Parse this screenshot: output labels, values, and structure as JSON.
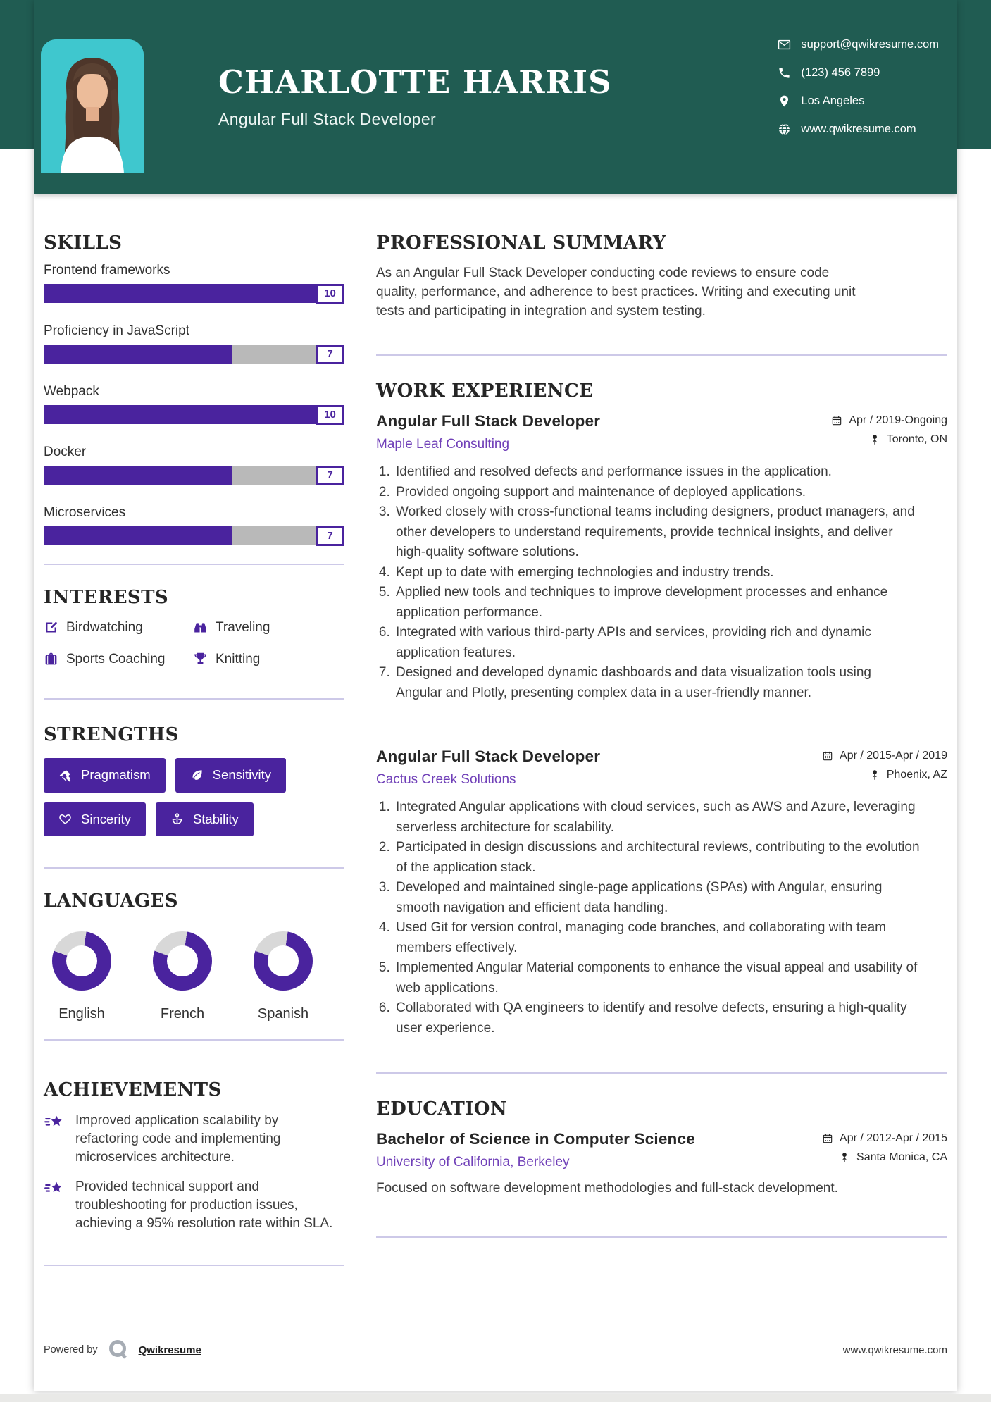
{
  "header": {
    "name": "CHARLOTTE HARRIS",
    "title": "Angular Full Stack Developer",
    "contacts": [
      {
        "icon": "email-icon",
        "text": "support@qwikresume.com"
      },
      {
        "icon": "phone-icon",
        "text": "(123) 456 7899"
      },
      {
        "icon": "location-icon",
        "text": "Los Angeles"
      },
      {
        "icon": "globe-icon",
        "text": "www.qwikresume.com"
      }
    ]
  },
  "skills": {
    "heading": "SKILLS",
    "items": [
      {
        "label": "Frontend frameworks",
        "score": 10,
        "percent": 100
      },
      {
        "label": "Proficiency in JavaScript",
        "score": 7,
        "percent": 63
      },
      {
        "label": "Webpack",
        "score": 10,
        "percent": 100
      },
      {
        "label": "Docker",
        "score": 7,
        "percent": 63
      },
      {
        "label": "Microservices",
        "score": 7,
        "percent": 63
      }
    ]
  },
  "interests": {
    "heading": "INTERESTS",
    "items": [
      {
        "icon": "pen-square-icon",
        "label": "Birdwatching"
      },
      {
        "icon": "binoculars-icon",
        "label": "Traveling"
      },
      {
        "icon": "briefcase-icon",
        "label": "Sports Coaching"
      },
      {
        "icon": "trophy-icon",
        "label": "Knitting"
      }
    ]
  },
  "strengths": {
    "heading": "STRENGTHS",
    "items": [
      {
        "icon": "gavel-icon",
        "label": "Pragmatism"
      },
      {
        "icon": "leaf-icon",
        "label": "Sensitivity"
      },
      {
        "icon": "heart-icon",
        "label": "Sincerity"
      },
      {
        "icon": "anchor-icon",
        "label": "Stability"
      }
    ]
  },
  "languages": {
    "heading": "LANGUAGES",
    "items": [
      {
        "label": "English",
        "percent": 78
      },
      {
        "label": "French",
        "percent": 78
      },
      {
        "label": "Spanish",
        "percent": 78
      }
    ]
  },
  "achievements": {
    "heading": "ACHIEVEMENTS",
    "items": [
      "Improved application scalability by refactoring code and implementing microservices architecture.",
      "Provided technical support and troubleshooting for production issues, achieving a 95% resolution rate within SLA."
    ]
  },
  "summary": {
    "heading": "PROFESSIONAL SUMMARY",
    "text": "As an Angular Full Stack Developer conducting code reviews to ensure code quality, performance, and adherence to best practices. Writing and executing unit tests and participating in integration and system testing."
  },
  "experience": {
    "heading": "WORK EXPERIENCE",
    "jobs": [
      {
        "title": "Angular Full Stack Developer",
        "company": "Maple Leaf Consulting",
        "dates": "Apr / 2019-Ongoing",
        "location": "Toronto, ON",
        "bullets": [
          "Identified and resolved defects and performance issues in the application.",
          "Provided ongoing support and maintenance of deployed applications.",
          "Worked closely with cross-functional teams including designers, product managers, and other developers to understand requirements, provide technical insights, and deliver high-quality software solutions.",
          "Kept up to date with emerging technologies and industry trends.",
          "Applied new tools and techniques to improve development processes and enhance application performance.",
          "Integrated with various third-party APIs and services, providing rich and dynamic application features.",
          "Designed and developed dynamic dashboards and data visualization tools using Angular and Plotly, presenting complex data in a user-friendly manner."
        ]
      },
      {
        "title": "Angular Full Stack Developer",
        "company": "Cactus Creek Solutions",
        "dates": "Apr / 2015-Apr / 2019",
        "location": "Phoenix, AZ",
        "bullets": [
          "Integrated Angular applications with cloud services, such as AWS and Azure, leveraging serverless architecture for scalability.",
          "Participated in design discussions and architectural reviews, contributing to the evolution of the application stack.",
          "Developed and maintained single-page applications (SPAs) with Angular, ensuring smooth navigation and efficient data handling.",
          "Used Git for version control, managing code branches, and collaborating with team members effectively.",
          "Implemented Angular Material components to enhance the visual appeal and usability of web applications.",
          "Collaborated with QA engineers to identify and resolve defects, ensuring a high-quality user experience."
        ]
      }
    ]
  },
  "education": {
    "heading": "EDUCATION",
    "degree": "Bachelor of Science in Computer Science",
    "school": "University of California, Berkeley",
    "dates": "Apr / 2012-Apr / 2015",
    "location": "Santa Monica, CA",
    "description": "Focused on software development methodologies and full-stack development."
  },
  "footer": {
    "powered_by": "Powered by",
    "brand": "Qwikresume",
    "website": "www.qwikresume.com"
  },
  "colors": {
    "accent": "#4a239e",
    "header_bg": "#205c52",
    "photo_bg": "#3fc7ce",
    "link": "#7040b8",
    "bar_track": "#b9b9b9",
    "divider": "#cdc9e8"
  }
}
